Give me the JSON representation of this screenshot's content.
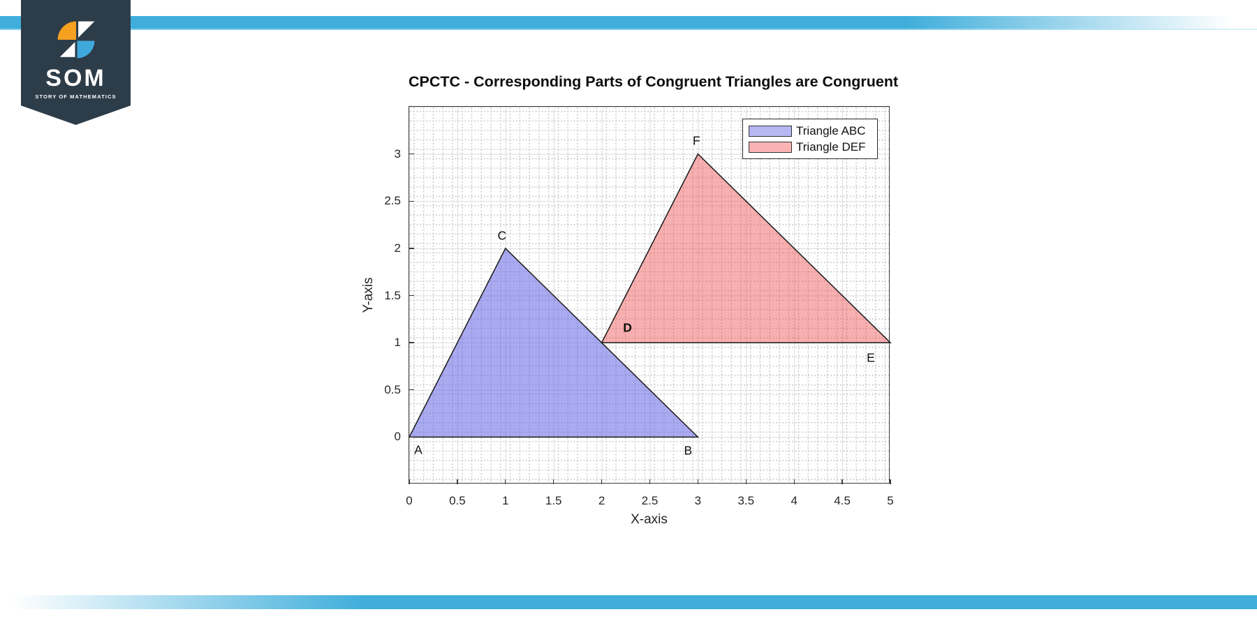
{
  "page": {
    "stripe_color": "#3faedb",
    "background": "#ffffff"
  },
  "logo": {
    "title": "SOM",
    "subtitle": "STORY OF MATHEMATICS",
    "banner_color": "#2d3c49",
    "icon_colors": {
      "orange": "#f5a11f",
      "blue": "#3fa9dc",
      "white": "#ffffff"
    }
  },
  "chart_data": {
    "type": "area",
    "title": "CPCTC - Corresponding Parts of Congruent Triangles are Congruent",
    "xlabel": "X-axis",
    "ylabel": "Y-axis",
    "xlim": [
      0,
      5
    ],
    "ylim": [
      -0.5,
      3.5
    ],
    "x_ticks": [
      "0",
      "0.5",
      "1",
      "1.5",
      "2",
      "2.5",
      "3",
      "3.5",
      "4",
      "4.5",
      "5"
    ],
    "y_ticks": [
      "0",
      "0.5",
      "1",
      "1.5",
      "2",
      "2.5",
      "3"
    ],
    "grid": "major solid gray at 0.5 steps, dotted minor grid",
    "legend_position": "top-right",
    "series": [
      {
        "name": "Triangle ABC",
        "fill": "rgba(92,92,226,0.52)",
        "swatch": "#b7b7f3",
        "edge": "#1a1a1a",
        "vertices": [
          {
            "label": "A",
            "x": 0,
            "y": 0,
            "dx": 13,
            "dy": 19,
            "bold": false
          },
          {
            "label": "B",
            "x": 3,
            "y": 0,
            "dx": -14,
            "dy": 20,
            "bold": false
          },
          {
            "label": "C",
            "x": 1,
            "y": 2,
            "dx": -5,
            "dy": -18,
            "bold": false
          }
        ]
      },
      {
        "name": "Triangle DEF",
        "fill": "rgba(238,72,72,0.44)",
        "swatch": "#fab3b3",
        "edge": "#1a1a1a",
        "vertices": [
          {
            "label": "D",
            "x": 2,
            "y": 1,
            "dx": 37,
            "dy": -21,
            "bold": true
          },
          {
            "label": "E",
            "x": 5,
            "y": 1,
            "dx": -28,
            "dy": 22,
            "bold": false
          },
          {
            "label": "F",
            "x": 3,
            "y": 3,
            "dx": -2,
            "dy": -19,
            "bold": false
          }
        ]
      }
    ]
  }
}
